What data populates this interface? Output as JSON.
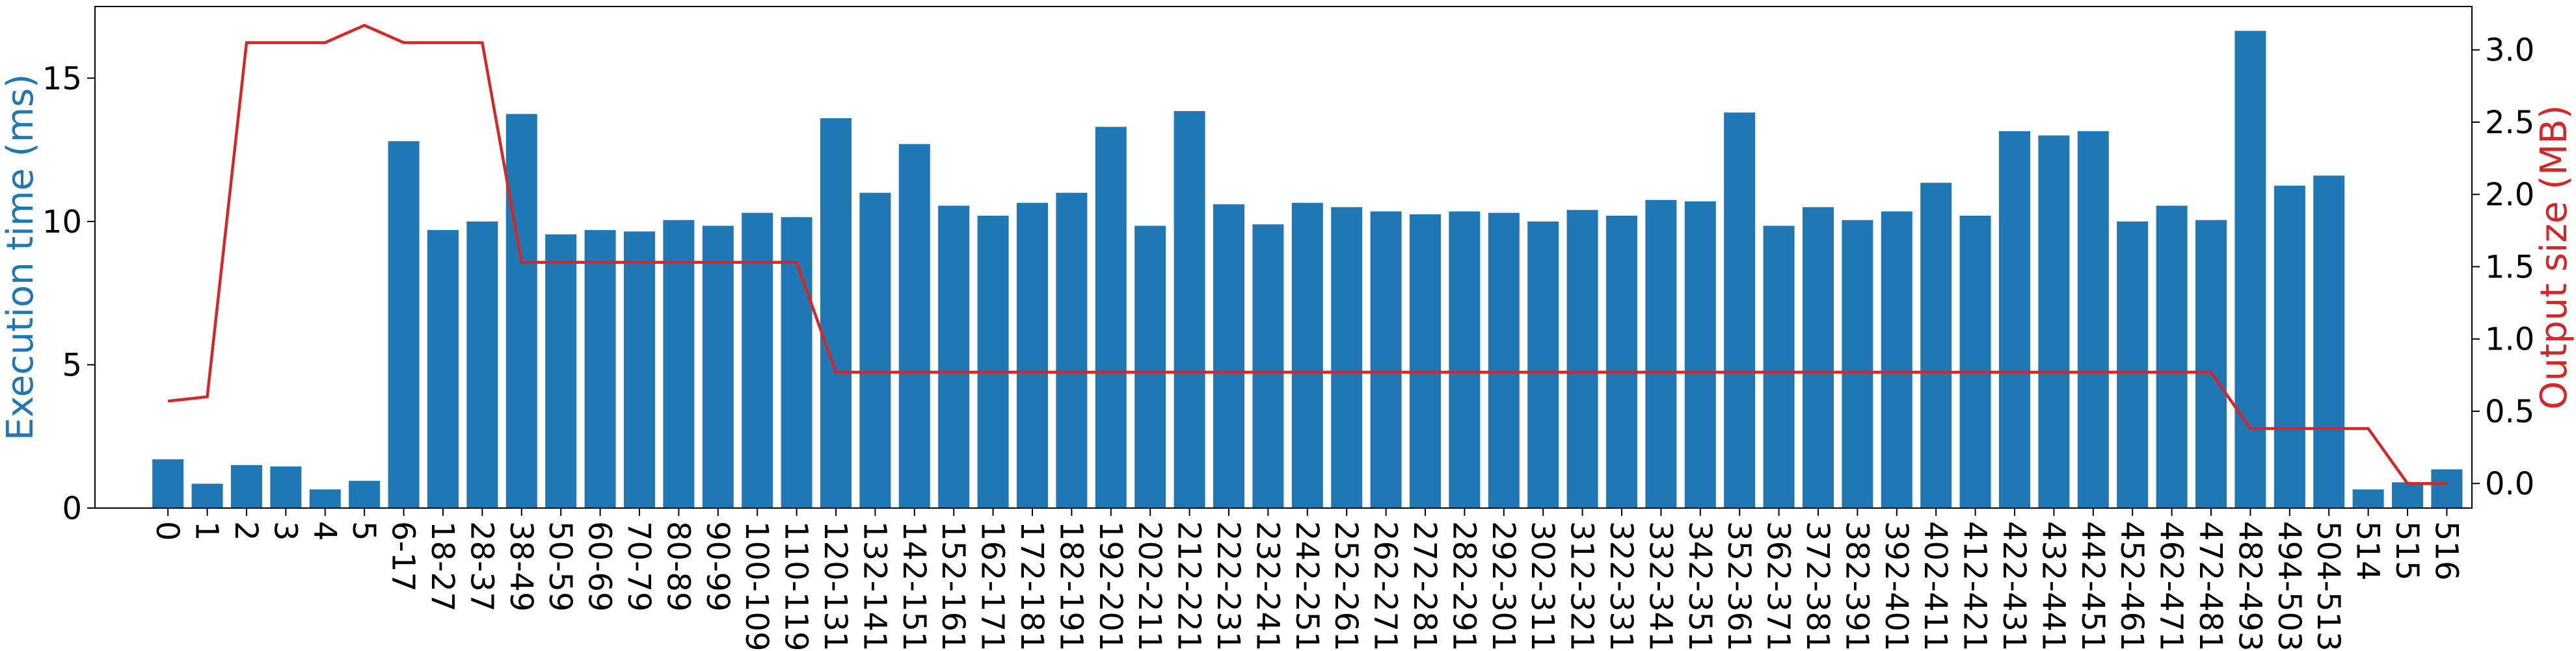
{
  "chart_data": {
    "type": "bar",
    "categories": [
      "0",
      "1",
      "2",
      "3",
      "4",
      "5",
      "6-17",
      "18-27",
      "28-37",
      "38-49",
      "50-59",
      "60-69",
      "70-79",
      "80-89",
      "90-99",
      "100-109",
      "110-119",
      "120-131",
      "132-141",
      "142-151",
      "152-161",
      "162-171",
      "172-181",
      "182-191",
      "192-201",
      "202-211",
      "212-221",
      "222-231",
      "232-241",
      "242-251",
      "252-261",
      "262-271",
      "272-281",
      "282-291",
      "292-301",
      "302-311",
      "312-321",
      "322-331",
      "332-341",
      "342-351",
      "352-361",
      "362-371",
      "372-381",
      "382-391",
      "392-401",
      "402-411",
      "412-421",
      "422-431",
      "432-441",
      "442-451",
      "452-461",
      "462-471",
      "472-481",
      "482-493",
      "494-503",
      "504-513",
      "514",
      "515",
      "516"
    ],
    "series": [
      {
        "type": "bar",
        "axis": "left",
        "color": "#1f77b4",
        "values": [
          1.7,
          0.85,
          1.5,
          1.45,
          0.65,
          0.95,
          12.8,
          9.7,
          10.0,
          13.75,
          9.55,
          9.7,
          9.65,
          10.05,
          9.85,
          10.3,
          10.15,
          13.6,
          11.0,
          12.7,
          10.55,
          10.2,
          10.65,
          11.0,
          13.3,
          9.85,
          13.85,
          10.6,
          9.9,
          10.65,
          10.5,
          10.35,
          10.25,
          10.35,
          10.3,
          10.0,
          10.4,
          10.2,
          10.75,
          10.7,
          13.8,
          9.85,
          10.5,
          10.05,
          10.35,
          11.35,
          10.2,
          13.15,
          13.0,
          13.15,
          10.0,
          10.55,
          10.05,
          16.65,
          11.25,
          11.6,
          0.65,
          0.9,
          1.35
        ]
      },
      {
        "type": "line",
        "axis": "right",
        "color": "#d62728",
        "values": [
          0.57,
          0.6,
          3.05,
          3.05,
          3.05,
          3.17,
          3.05,
          3.05,
          3.05,
          1.53,
          1.53,
          1.53,
          1.53,
          1.53,
          1.53,
          1.53,
          1.53,
          0.77,
          0.77,
          0.77,
          0.77,
          0.77,
          0.77,
          0.77,
          0.77,
          0.77,
          0.77,
          0.77,
          0.77,
          0.77,
          0.77,
          0.77,
          0.77,
          0.77,
          0.77,
          0.77,
          0.77,
          0.77,
          0.77,
          0.77,
          0.77,
          0.77,
          0.77,
          0.77,
          0.77,
          0.77,
          0.77,
          0.77,
          0.77,
          0.77,
          0.77,
          0.77,
          0.77,
          0.38,
          0.38,
          0.38,
          0.38,
          0.0,
          0.0
        ]
      }
    ],
    "ylabel": "Execution time (ms)",
    "y2label": "Output size (MB)",
    "ylim": [
      0,
      17.5
    ],
    "y2lim": [
      -0.17,
      3.3
    ],
    "yticks": [
      0,
      5,
      10,
      15
    ],
    "y2ticks": [
      "0.0",
      "0.5",
      "1.0",
      "1.5",
      "2.0",
      "2.5",
      "3.0"
    ],
    "ylabel_color": "#1f77b4",
    "y2label_color": "#d62728",
    "legend": "none",
    "grid": false
  }
}
